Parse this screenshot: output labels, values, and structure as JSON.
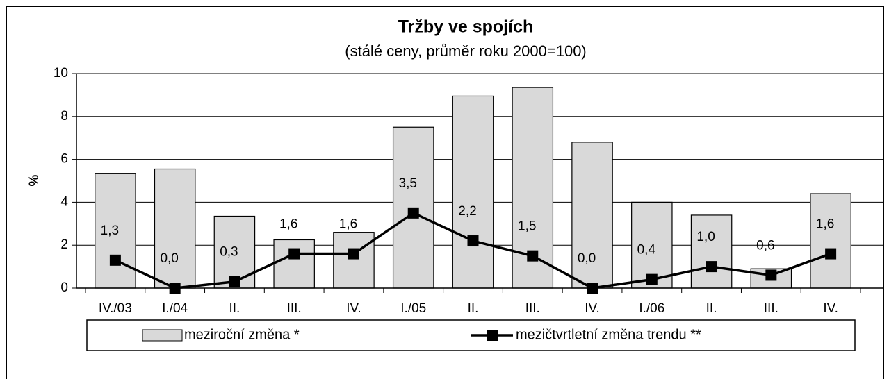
{
  "chart_data": {
    "type": "bar_line",
    "title": "Tržby ve spojích",
    "subtitle": "(stálé ceny, průměr roku 2000=100)",
    "y_label": "%",
    "categories": [
      "IV./03",
      "I./04",
      "II.",
      "III.",
      "IV.",
      "I./05",
      "II.",
      "III.",
      "IV.",
      "I./06",
      "II.",
      "III.",
      "IV."
    ],
    "series": [
      {
        "name": "meziroční změna *",
        "type": "bar",
        "color": "#d9d9d9",
        "values": [
          5.35,
          5.55,
          3.35,
          2.25,
          2.6,
          7.5,
          8.95,
          9.35,
          6.8,
          4.0,
          3.4,
          0.9,
          4.4
        ]
      },
      {
        "name": "mezičtvrtletní změna trendu **",
        "type": "line",
        "color": "#000000",
        "values": [
          1.3,
          0.0,
          0.3,
          1.6,
          1.6,
          3.5,
          2.2,
          1.5,
          0.0,
          0.4,
          1.0,
          0.6,
          1.6
        ],
        "value_labels": [
          "1,3",
          "0,0",
          "0,3",
          "1,6",
          "1,6",
          "3,5",
          "2,2",
          "1,5",
          "0,0",
          "0,4",
          "1,0",
          "0,6",
          "1,6"
        ]
      }
    ],
    "ylim": [
      0,
      10
    ],
    "yticks": [
      0,
      2,
      4,
      6,
      8,
      10
    ],
    "grid": true
  }
}
